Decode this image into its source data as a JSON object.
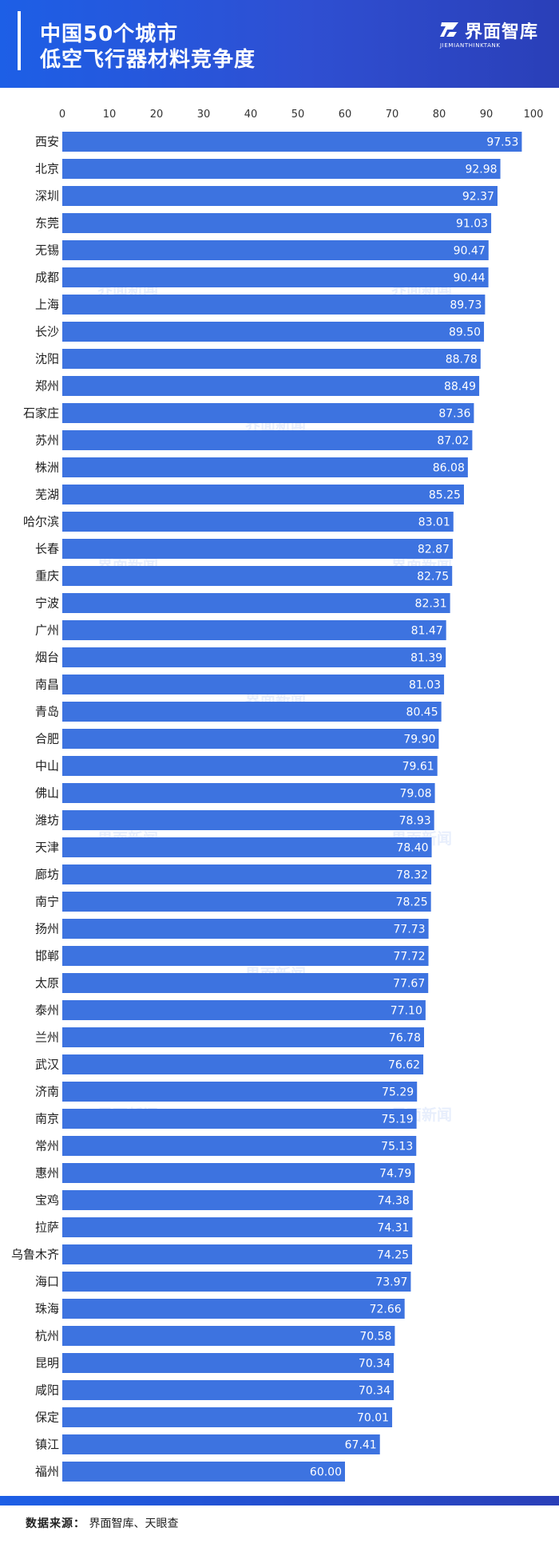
{
  "header": {
    "title_line1": "中国50个城市",
    "title_line2": "低空飞行器材料竞争度",
    "logo_name": "界面智库",
    "logo_sub": "JIEMIANTHINKTANK",
    "accent": "#1d5fe6"
  },
  "watermark": {
    "text": "界面新闻"
  },
  "footer": {
    "source_label": "数据来源：",
    "source_text": "界面智库、天眼查"
  },
  "chart_data": {
    "type": "bar",
    "orientation": "horizontal",
    "bar_color": "#3d73e0",
    "xlim": [
      0,
      100
    ],
    "xticks": [
      0,
      10,
      20,
      30,
      40,
      50,
      60,
      70,
      80,
      90,
      100
    ],
    "x_axis_position": "top",
    "grid": false,
    "categories": [
      "西安",
      "北京",
      "深圳",
      "东莞",
      "无锡",
      "成都",
      "上海",
      "长沙",
      "沈阳",
      "郑州",
      "石家庄",
      "苏州",
      "株洲",
      "芜湖",
      "哈尔滨",
      "长春",
      "重庆",
      "宁波",
      "广州",
      "烟台",
      "南昌",
      "青岛",
      "合肥",
      "中山",
      "佛山",
      "潍坊",
      "天津",
      "廊坊",
      "南宁",
      "扬州",
      "邯郸",
      "太原",
      "泰州",
      "兰州",
      "武汉",
      "济南",
      "南京",
      "常州",
      "惠州",
      "宝鸡",
      "拉萨",
      "乌鲁木齐",
      "海口",
      "珠海",
      "杭州",
      "昆明",
      "咸阳",
      "保定",
      "镇江",
      "福州"
    ],
    "values": [
      97.53,
      92.98,
      92.37,
      91.03,
      90.47,
      90.44,
      89.73,
      89.5,
      88.78,
      88.49,
      87.36,
      87.02,
      86.08,
      85.25,
      83.01,
      82.87,
      82.75,
      82.31,
      81.47,
      81.39,
      81.03,
      80.45,
      79.9,
      79.61,
      79.08,
      78.93,
      78.4,
      78.32,
      78.25,
      77.73,
      77.72,
      77.67,
      77.1,
      76.78,
      76.62,
      75.29,
      75.19,
      75.13,
      74.79,
      74.38,
      74.31,
      74.25,
      73.97,
      72.66,
      70.58,
      70.34,
      70.34,
      70.01,
      67.41,
      60.0
    ],
    "value_labels": [
      "97.53",
      "92.98",
      "92.37",
      "91.03",
      "90.47",
      "90.44",
      "89.73",
      "89.50",
      "88.78",
      "88.49",
      "87.36",
      "87.02",
      "86.08",
      "85.25",
      "83.01",
      "82.87",
      "82.75",
      "82.31",
      "81.47",
      "81.39",
      "81.03",
      "80.45",
      "79.90",
      "79.61",
      "79.08",
      "78.93",
      "78.40",
      "78.32",
      "78.25",
      "77.73",
      "77.72",
      "77.67",
      "77.10",
      "76.78",
      "76.62",
      "75.29",
      "75.19",
      "75.13",
      "74.79",
      "74.38",
      "74.31",
      "74.25",
      "73.97",
      "72.66",
      "70.58",
      "70.34",
      "70.34",
      "70.01",
      "67.41",
      "60.00"
    ]
  }
}
